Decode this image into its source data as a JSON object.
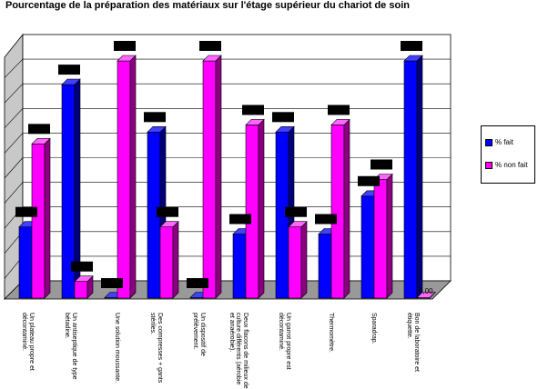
{
  "chart_data": {
    "type": "bar",
    "title": "Pourcentage de la préparation des matériaux sur l'étage supérieur  du chariot de soin",
    "categories": [
      "Un plateau propre et décontaminé.",
      "Un antiseptique de type bétadine.",
      "Une solution moussante.",
      "Des compresses + gants stériles.",
      "Un dispositif de prélèvement.",
      "Deux flacons de milieux de culture différents (aérobie et anaérobie).",
      "Un garrot propre est décontaminé.",
      "Thermomètre.",
      "Sparadrap.",
      "Bon de laboratoire et étiquette."
    ],
    "series": [
      {
        "name": "% fait",
        "color": "#0000ff",
        "values": [
          30,
          90,
          0,
          70,
          0,
          27,
          70,
          27,
          43,
          100
        ]
      },
      {
        "name": "% non fait",
        "color": "#ff00ff",
        "values": [
          65,
          7,
          100,
          30,
          100,
          73,
          30,
          73,
          50,
          0
        ]
      }
    ],
    "data_labels_visible": [
      "0,00"
    ],
    "ylim": [
      0,
      100
    ],
    "grid": true,
    "legend": "right",
    "colors": {
      "front_wall": "#ffffff",
      "side_wall": "#cccccc",
      "floor": "#999999",
      "blue_dark": "#00007a",
      "magenta_dark": "#8a0080",
      "label_box": "#000000"
    }
  }
}
